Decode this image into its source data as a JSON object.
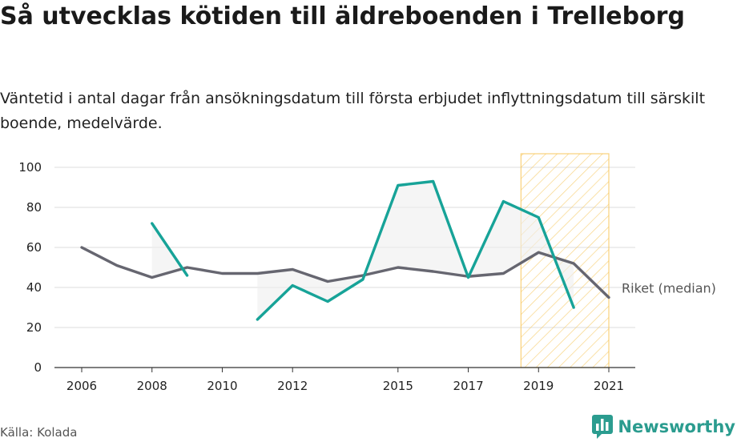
{
  "title": "Så utvecklas kötiden till äldreboenden i Trelleborg",
  "subtitle": "Väntetid i antal dagar från ansökningsdatum till första erbjudet inflyttningsdatum till särskilt boende, medelvärde.",
  "source": "Källa: Kolada",
  "brand": "Newsworthy",
  "icons": {
    "brand_logo": "bar-chart-speech-bubble-icon"
  },
  "chart_data": {
    "type": "line",
    "x_ticks": [
      2006,
      2008,
      2010,
      2012,
      2015,
      2017,
      2019,
      2021
    ],
    "y_ticks": [
      0,
      20,
      40,
      60,
      80,
      100
    ],
    "ylim": [
      0,
      100
    ],
    "xlim": [
      2006,
      2021
    ],
    "grid": "horizontal",
    "series": [
      {
        "name": "",
        "color": "#17a398",
        "points": [
          [
            [
              2008,
              72
            ],
            [
              2009,
              46
            ]
          ],
          [
            [
              2011,
              24
            ],
            [
              2012,
              41
            ],
            [
              2013,
              33
            ],
            [
              2014,
              44
            ],
            [
              2015,
              91
            ],
            [
              2016,
              93
            ],
            [
              2017,
              45
            ],
            [
              2018,
              83
            ],
            [
              2019,
              75
            ],
            [
              2020,
              30
            ]
          ]
        ]
      },
      {
        "name": "Riket (median)",
        "color": "#666670",
        "points": [
          [
            [
              2006,
              60
            ],
            [
              2007,
              51
            ],
            [
              2008,
              45
            ],
            [
              2009,
              50
            ],
            [
              2010,
              47
            ],
            [
              2011,
              47
            ],
            [
              2012,
              49
            ],
            [
              2013,
              43
            ],
            [
              2014,
              46
            ],
            [
              2015,
              50
            ],
            [
              2016,
              48
            ],
            [
              2017,
              45.5
            ],
            [
              2018,
              47
            ],
            [
              2019,
              57.5
            ],
            [
              2020,
              52
            ],
            [
              2021,
              35
            ]
          ]
        ]
      }
    ],
    "highlight_range": [
      2018.5,
      2021
    ],
    "highlight_color": "#f7c65a"
  }
}
